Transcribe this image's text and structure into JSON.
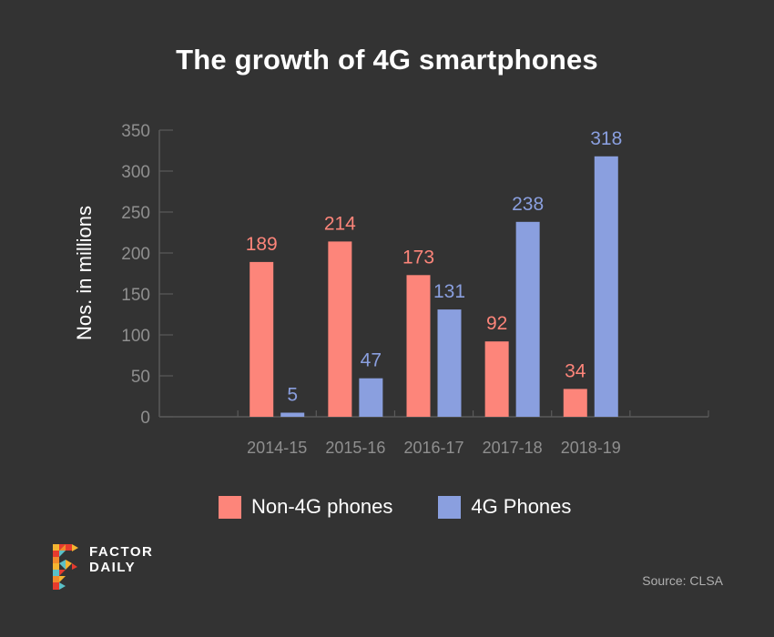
{
  "colors": {
    "background": "#333333",
    "non4g": "#fd857a",
    "g4": "#8a9fdf",
    "axis": "#5a5a5a",
    "tick_label": "#8f8f8f"
  },
  "chart_data": {
    "type": "bar",
    "title": "The growth of 4G smartphones",
    "xlabel": "",
    "ylabel": "Nos. in millions",
    "categories": [
      "2014-15",
      "2015-16",
      "2016-17",
      "2017-18",
      "2018-19"
    ],
    "series": [
      {
        "name": "Non-4G phones",
        "color": "#fd857a",
        "values": [
          189,
          214,
          173,
          92,
          34
        ]
      },
      {
        "name": "4G Phones",
        "color": "#8a9fdf",
        "values": [
          5,
          47,
          131,
          238,
          318
        ]
      }
    ],
    "ylim": [
      0,
      350
    ],
    "yticks": [
      0,
      50,
      100,
      150,
      200,
      250,
      300,
      350
    ],
    "grid": false,
    "legend": "bottom-center",
    "data_labels": true
  },
  "legend": {
    "items": [
      {
        "label": "Non-4G phones",
        "color": "#fd857a"
      },
      {
        "label": "4G Phones",
        "color": "#8a9fdf"
      }
    ]
  },
  "logo": {
    "line1": "FACTOR",
    "line2": "DAILY"
  },
  "source": "Source: CLSA"
}
